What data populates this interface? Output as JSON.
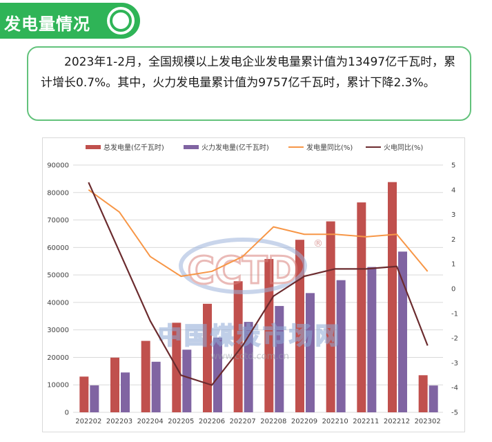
{
  "header": {
    "title": "发电量情况"
  },
  "summary": {
    "text": "2023年1-2月，全国规模以上发电企业发电量累计值为13497亿千瓦时，累计增长0.7%。其中，火力发电量累计值为9757亿千瓦时，累计下降2.3%。"
  },
  "watermark": {
    "logo": "CCTD",
    "cn": "中国煤炭市场网",
    "url": "www.cctd.com.cn",
    "reg": "®"
  },
  "colors": {
    "header_green": "#2fb457",
    "total": "#c0504d",
    "thermal": "#8064a2",
    "total_yoy": "#f79646",
    "thermal_yoy": "#6b2b2e"
  },
  "chart_data": {
    "type": "bar",
    "categories": [
      "202202",
      "202203",
      "202204",
      "202205",
      "202206",
      "202207",
      "202208",
      "202209",
      "202210",
      "202211",
      "202212",
      "202302"
    ],
    "series": [
      {
        "name": "总发电量(亿千瓦时)",
        "type": "bar",
        "axis": "left",
        "color": "#c0504d",
        "values": [
          13000,
          19900,
          26000,
          32600,
          39500,
          47700,
          55800,
          62800,
          69500,
          76400,
          83800,
          13497
        ]
      },
      {
        "name": "火力发电量(亿千瓦时)",
        "type": "bar",
        "axis": "left",
        "color": "#8064a2",
        "values": [
          9800,
          14500,
          18400,
          22800,
          27200,
          32900,
          38700,
          43400,
          48100,
          52900,
          58500,
          9757
        ]
      },
      {
        "name": "发电量同比(%)",
        "type": "line",
        "axis": "right",
        "color": "#f79646",
        "values": [
          4.0,
          3.1,
          1.3,
          0.5,
          0.7,
          1.3,
          2.5,
          2.2,
          2.2,
          2.1,
          2.2,
          0.7
        ]
      },
      {
        "name": "火电同比(%)",
        "type": "line",
        "axis": "right",
        "color": "#6b2b2e",
        "values": [
          4.3,
          1.5,
          -1.3,
          -3.5,
          -3.9,
          -2.3,
          -0.3,
          0.5,
          0.8,
          0.8,
          0.9,
          -2.3
        ]
      }
    ],
    "left_axis": {
      "min": 0,
      "max": 90000,
      "ticks": [
        "0",
        "10000",
        "20000",
        "30000",
        "40000",
        "50000",
        "60000",
        "70000",
        "80000",
        "90000"
      ]
    },
    "right_axis": {
      "min": -5,
      "max": 5,
      "ticks": [
        "-5",
        "-4",
        "-3",
        "-2",
        "-1",
        "0",
        "1",
        "2",
        "3",
        "4",
        "5"
      ]
    },
    "title": "",
    "xlabel": "",
    "ylabel": "",
    "grid": true,
    "legend_position": "top"
  }
}
